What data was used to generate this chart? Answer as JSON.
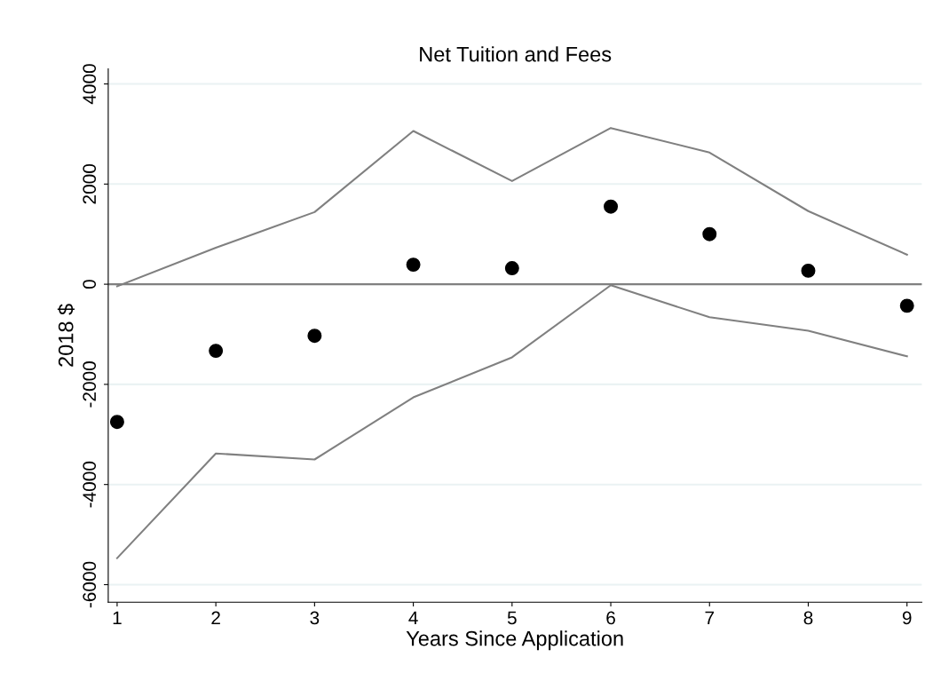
{
  "chart_data": {
    "type": "line",
    "title": "Net Tuition and Fees",
    "xlabel": "Years Since Application",
    "ylabel": "2018 $",
    "x": [
      1,
      2,
      3,
      4,
      5,
      6,
      7,
      8,
      9
    ],
    "series": [
      {
        "type": "scatter",
        "marker": "circle",
        "color": "#000000",
        "values": [
          -2750,
          -1330,
          -1030,
          390,
          320,
          1550,
          1000,
          270,
          -430
        ]
      },
      {
        "color": "#808080",
        "values": [
          -40,
          730,
          1440,
          3060,
          2060,
          3120,
          2630,
          1460,
          590
        ]
      },
      {
        "color": "#808080",
        "values": [
          -5470,
          -3380,
          -3500,
          -2260,
          -1460,
          -20,
          -660,
          -930,
          -1440
        ]
      }
    ],
    "xlim": [
      0.91,
      9.15
    ],
    "xticks": [
      1,
      2,
      3,
      4,
      5,
      6,
      7,
      8,
      9
    ],
    "ylim": [
      -6350,
      4300
    ],
    "yticks": [
      -6000,
      -4000,
      -2000,
      0,
      2000,
      4000
    ],
    "ref_lines": [
      {
        "axis": "y",
        "value": 0,
        "color": "#808080"
      }
    ],
    "grid": "y"
  }
}
